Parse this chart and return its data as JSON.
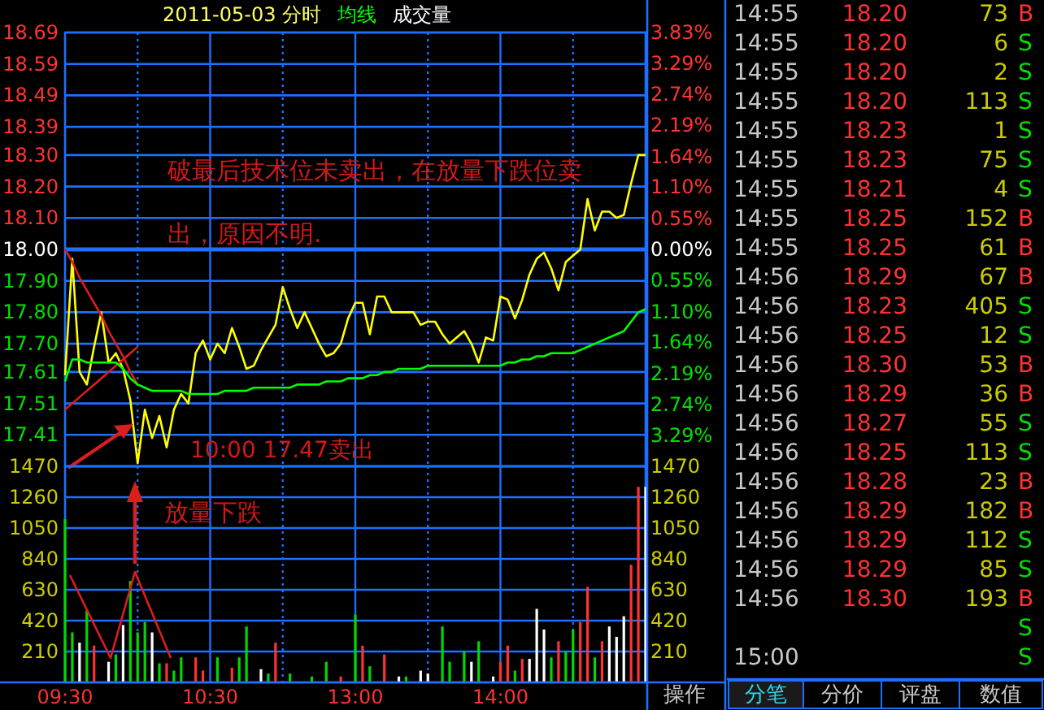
{
  "chart_data": [
    {
      "type": "line",
      "title": "2011-05-03 分时",
      "legend": "top left",
      "grid": true,
      "tick_labels": "y",
      "categories": [
        null,
        null,
        null,
        null,
        null,
        null,
        null,
        null,
        null,
        null,
        null,
        null,
        null,
        null,
        null,
        null,
        null,
        null,
        null,
        null,
        null,
        null,
        null,
        null,
        null,
        null,
        null,
        null,
        null,
        null,
        null,
        null,
        null,
        null,
        null,
        null,
        null,
        null,
        null,
        null,
        null,
        null,
        null,
        null,
        null,
        null,
        null,
        null,
        null,
        null,
        null,
        null,
        null,
        null,
        null,
        null,
        null,
        null,
        null,
        null,
        null,
        null,
        null,
        null,
        null,
        null,
        null,
        null,
        null,
        null,
        null,
        null,
        null,
        null,
        null,
        null,
        null,
        null,
        null,
        null,
        null
      ],
      "ylim": [
        17.31,
        18.69
      ],
      "yticks": [
        18.69,
        18.59,
        18.49,
        18.39,
        {
          "value": 18.3,
          "label": "18.30"
        },
        {
          "value": 18.2,
          "label": "18.20"
        },
        {
          "value": 18.1,
          "label": "18.10"
        },
        {
          "value": 18,
          "label": "18.00"
        },
        {
          "value": 17.9,
          "label": "17.90"
        },
        {
          "value": 17.8,
          "label": "17.80"
        },
        {
          "value": 17.7,
          "label": "17.70"
        },
        17.61,
        17.51,
        17.41
      ],
      "y2lim": [
        -3.83,
        3.83
      ],
      "y2ticks": [
        {
          "value": 3.83,
          "label": "3.83%"
        },
        {
          "value": 3.29,
          "label": "3.29%"
        },
        {
          "value": 2.74,
          "label": "2.74%"
        },
        {
          "value": 2.19,
          "label": "2.19%"
        },
        {
          "value": 1.64,
          "label": "1.64%"
        },
        {
          "value": 1.1,
          "label": "1.10%"
        },
        {
          "value": 0.55,
          "label": "0.55%"
        },
        {
          "value": 0,
          "label": "0.00%"
        },
        {
          "value": -0.55,
          "label": "0.55%"
        },
        {
          "value": -1.1,
          "label": "1.10%"
        },
        {
          "value": -1.64,
          "label": "1.64%"
        },
        {
          "value": -2.19,
          "label": "2.19%"
        },
        {
          "value": -2.74,
          "label": "2.74%"
        },
        {
          "value": -3.29,
          "label": "3.29%"
        }
      ],
      "ref_lines": [
        {
          "axis": "y",
          "value": 18.0
        }
      ],
      "annotations": [
        "破最后技术位未卖出，在放量下跌位卖出，原因不明.",
        "10:00 17.47卖出"
      ],
      "series": [
        {
          "color": "#ffff00",
          "values": [
            17.6,
            17.97,
            17.61,
            17.57,
            17.69,
            17.8,
            17.64,
            17.67,
            17.62,
            17.52,
            17.32,
            17.49,
            17.4,
            17.47,
            17.37,
            17.49,
            17.54,
            17.51,
            17.67,
            17.71,
            17.65,
            17.7,
            17.67,
            17.75,
            17.69,
            17.62,
            17.63,
            17.68,
            17.72,
            17.76,
            17.88,
            17.81,
            17.75,
            17.8,
            17.75,
            17.7,
            17.66,
            17.67,
            17.7,
            17.78,
            17.83,
            17.83,
            17.73,
            17.85,
            17.85,
            17.8,
            17.8,
            17.8,
            17.8,
            17.76,
            17.77,
            17.77,
            17.73,
            17.7,
            17.72,
            17.74,
            17.7,
            17.64,
            17.72,
            17.71,
            17.85,
            17.84,
            17.78,
            17.84,
            17.92,
            17.97,
            17.99,
            17.94,
            17.87,
            17.96,
            17.98,
            18.0,
            18.16,
            18.06,
            18.12,
            18.12,
            18.1,
            18.11,
            18.21,
            18.3,
            18.3
          ]
        },
        {
          "color": "#dc1e1e",
          "values": [
            18.0,
            17.96,
            17.91,
            17.87,
            17.83,
            17.79,
            17.74,
            17.7,
            17.66,
            17.61,
            17.57,
            null,
            null,
            null,
            null,
            null,
            null,
            null,
            null,
            null,
            null,
            null,
            null,
            null,
            null,
            null,
            null,
            null,
            null,
            null,
            null,
            null,
            null,
            null,
            null,
            null,
            null,
            null,
            null,
            null,
            null,
            null,
            null,
            null,
            null,
            null,
            null,
            null,
            null,
            null,
            null,
            null,
            null,
            null,
            null,
            null,
            null,
            null,
            null,
            null,
            null,
            null,
            null,
            null,
            null,
            null,
            null,
            null,
            null,
            null,
            null,
            null,
            null,
            null,
            null,
            null,
            null,
            null,
            null,
            null,
            null
          ]
        },
        {
          "color": "#dc1e1e",
          "values": [
            17.49,
            17.51,
            17.53,
            17.55,
            17.57,
            17.59,
            17.61,
            17.63,
            17.65,
            17.67,
            17.69,
            null,
            null,
            null,
            null,
            null,
            null,
            null,
            null,
            null,
            null,
            null,
            null,
            null,
            null,
            null,
            null,
            null,
            null,
            null,
            null,
            null,
            null,
            null,
            null,
            null,
            null,
            null,
            null,
            null,
            null,
            null,
            null,
            null,
            null,
            null,
            null,
            null,
            null,
            null,
            null,
            null,
            null,
            null,
            null,
            null,
            null,
            null,
            null,
            null,
            null,
            null,
            null,
            null,
            null,
            null,
            null,
            null,
            null,
            null,
            null,
            null,
            null,
            null,
            null,
            null,
            null,
            null,
            null,
            null,
            null
          ]
        },
        {
          "name": "均线",
          "color": "#00ff00",
          "values": [
            17.58,
            17.65,
            17.65,
            17.64,
            17.64,
            17.64,
            17.64,
            17.64,
            17.62,
            17.59,
            17.57,
            17.56,
            17.55,
            17.55,
            17.55,
            17.55,
            17.55,
            17.54,
            17.54,
            17.54,
            17.54,
            17.54,
            17.55,
            17.55,
            17.55,
            17.55,
            17.56,
            17.56,
            17.56,
            17.56,
            17.56,
            17.56,
            17.57,
            17.57,
            17.57,
            17.57,
            17.58,
            17.58,
            17.58,
            17.59,
            17.59,
            17.59,
            17.6,
            17.6,
            17.61,
            17.61,
            17.62,
            17.62,
            17.62,
            17.62,
            17.63,
            17.63,
            17.63,
            17.63,
            17.63,
            17.63,
            17.63,
            17.63,
            17.63,
            17.63,
            17.63,
            17.64,
            17.64,
            17.65,
            17.65,
            17.66,
            17.66,
            17.67,
            17.67,
            17.67,
            17.67,
            17.68,
            17.69,
            17.7,
            17.71,
            17.72,
            17.73,
            17.74,
            17.77,
            17.8,
            17.81
          ]
        }
      ]
    },
    {
      "type": "bar",
      "legend": "top",
      "grid": true,
      "categories": [
        "09:30",
        null,
        null,
        null,
        null,
        null,
        null,
        null,
        null,
        null,
        null,
        null,
        null,
        null,
        null,
        null,
        null,
        null,
        null,
        null,
        "10:30",
        null,
        null,
        null,
        null,
        null,
        null,
        null,
        null,
        null,
        null,
        null,
        null,
        null,
        null,
        null,
        null,
        null,
        null,
        null,
        "13:00",
        null,
        null,
        null,
        null,
        null,
        null,
        null,
        null,
        null,
        null,
        null,
        null,
        null,
        null,
        null,
        null,
        null,
        null,
        null,
        "14:00",
        null,
        null,
        null,
        null,
        null,
        null,
        null,
        null,
        null,
        null,
        null,
        null,
        null,
        null,
        null,
        null,
        null,
        null,
        null,
        null
      ],
      "ylim": [
        0,
        1470
      ],
      "yticks": [
        210,
        420,
        630,
        840,
        1050,
        1260,
        1470
      ],
      "y2lim": [
        0,
        1470
      ],
      "y2ticks": [
        210,
        420,
        630,
        840,
        1050,
        1260,
        1470
      ],
      "annotations": [
        "放量下跌"
      ],
      "series": [
        {
          "name": "成交量",
          "values": [
            1110,
            340,
            270,
            490,
            250,
            null,
            140,
            190,
            390,
            690,
            340,
            410,
            340,
            130,
            130,
            80,
            170,
            null,
            170,
            80,
            null,
            170,
            null,
            100,
            170,
            380,
            null,
            90,
            60,
            270,
            null,
            60,
            null,
            null,
            40,
            null,
            140,
            null,
            40,
            null,
            460,
            250,
            110,
            null,
            190,
            null,
            40,
            40,
            null,
            80,
            60,
            null,
            380,
            140,
            null,
            210,
            140,
            280,
            null,
            40,
            140,
            250,
            80,
            160,
            160,
            500,
            360,
            170,
            280,
            210,
            360,
            410,
            650,
            170,
            280,
            380,
            310,
            450,
            800,
            1330,
            1330
          ],
          "colors": [
            "#00d800",
            "#00d800",
            "#ffffff",
            "#00d800",
            "#ff3232",
            null,
            "#ffffff",
            "#00d800",
            "#ffffff",
            "#00d800",
            "#00d800",
            "#00d800",
            "#ffffff",
            "#00d800",
            "#ff3232",
            "#00d800",
            "#00d800",
            null,
            "#ff3232",
            "#ff3232",
            null,
            "#00d800",
            null,
            "#ff3232",
            "#00d800",
            "#00d800",
            null,
            "#ffffff",
            "#00d800",
            "#ff3232",
            null,
            "#00d800",
            null,
            null,
            "#00d800",
            null,
            "#00d800",
            null,
            "#ff3232",
            null,
            "#00d800",
            "#ff3232",
            "#00d800",
            null,
            "#ff3232",
            null,
            "#ffffff",
            "#00d800",
            null,
            "#ffffff",
            "#ffffff",
            null,
            "#00d800",
            "#00d800",
            null,
            "#00d800",
            "#ffffff",
            "#00d800",
            null,
            "#ffffff",
            "#ff3232",
            "#ff3232",
            "#00d800",
            "#ff3232",
            "#ffffff",
            "#ffffff",
            "#ffffff",
            "#00d800",
            "#ff3232",
            "#00d800",
            "#00d800",
            "#ff3232",
            "#ff3232",
            "#00d800",
            "#ff3232",
            "#ffffff",
            "#ffffff",
            "#ffffff",
            "#ff3232",
            "#ff3232",
            "#ffffff"
          ]
        }
      ]
    },
    {
      "type": "other",
      "data_labels": true,
      "categories": [
        "14:55",
        "14:55",
        "14:55",
        "14:55",
        "14:55",
        "14:55",
        "14:55",
        "14:55",
        "14:55",
        "14:56",
        "14:56",
        "14:56",
        "14:56",
        "14:56",
        "14:56",
        "14:56",
        "14:56",
        "14:56",
        "14:56",
        "14:56",
        "14:56",
        null,
        "15:00"
      ],
      "series": [
        {
          "color": "#ff3232",
          "values": [
            18.2,
            18.2,
            18.2,
            18.2,
            18.23,
            18.23,
            18.21,
            18.25,
            18.25,
            18.29,
            18.23,
            18.25,
            18.3,
            18.29,
            18.27,
            18.25,
            18.28,
            18.29,
            18.29,
            18.29,
            18.3,
            null,
            null
          ],
          "value_labels": [
            "18.20",
            "18.20",
            "18.20",
            "18.20",
            "18.23",
            "18.23",
            "18.21",
            "18.25",
            "18.25",
            "18.29",
            "18.23",
            "18.25",
            "18.30",
            "18.29",
            "18.27",
            "18.25",
            "18.28",
            "18.29",
            "18.29",
            "18.29",
            "18.30",
            null,
            null
          ]
        },
        {
          "color": "#cccc00",
          "values": [
            73,
            6,
            2,
            113,
            1,
            75,
            4,
            152,
            61,
            67,
            405,
            12,
            53,
            36,
            55,
            113,
            23,
            182,
            112,
            85,
            193,
            null,
            null
          ]
        }
      ],
      "y2_categories": [
        "B",
        "S",
        "S",
        "S",
        "S",
        "S",
        "S",
        "B",
        "B",
        "B",
        "S",
        "S",
        "B",
        "B",
        "S",
        "S",
        "B",
        "B",
        "S",
        "S",
        "B",
        "S",
        "S"
      ],
      "colors": [
        "#ff3232",
        "#00e000",
        "#00e000",
        "#00e000",
        "#00e000",
        "#00e000",
        "#00e000",
        "#ff3232",
        "#ff3232",
        "#ff3232",
        "#00e000",
        "#00e000",
        "#ff3232",
        "#ff3232",
        "#00e000",
        "#00e000",
        "#ff3232",
        "#ff3232",
        "#00e000",
        "#00e000",
        "#ff3232",
        "#00e000",
        "#00e000"
      ],
      "annotations": [
        "分笔",
        "分价",
        "评盘",
        "数值",
        "操作"
      ]
    }
  ]
}
